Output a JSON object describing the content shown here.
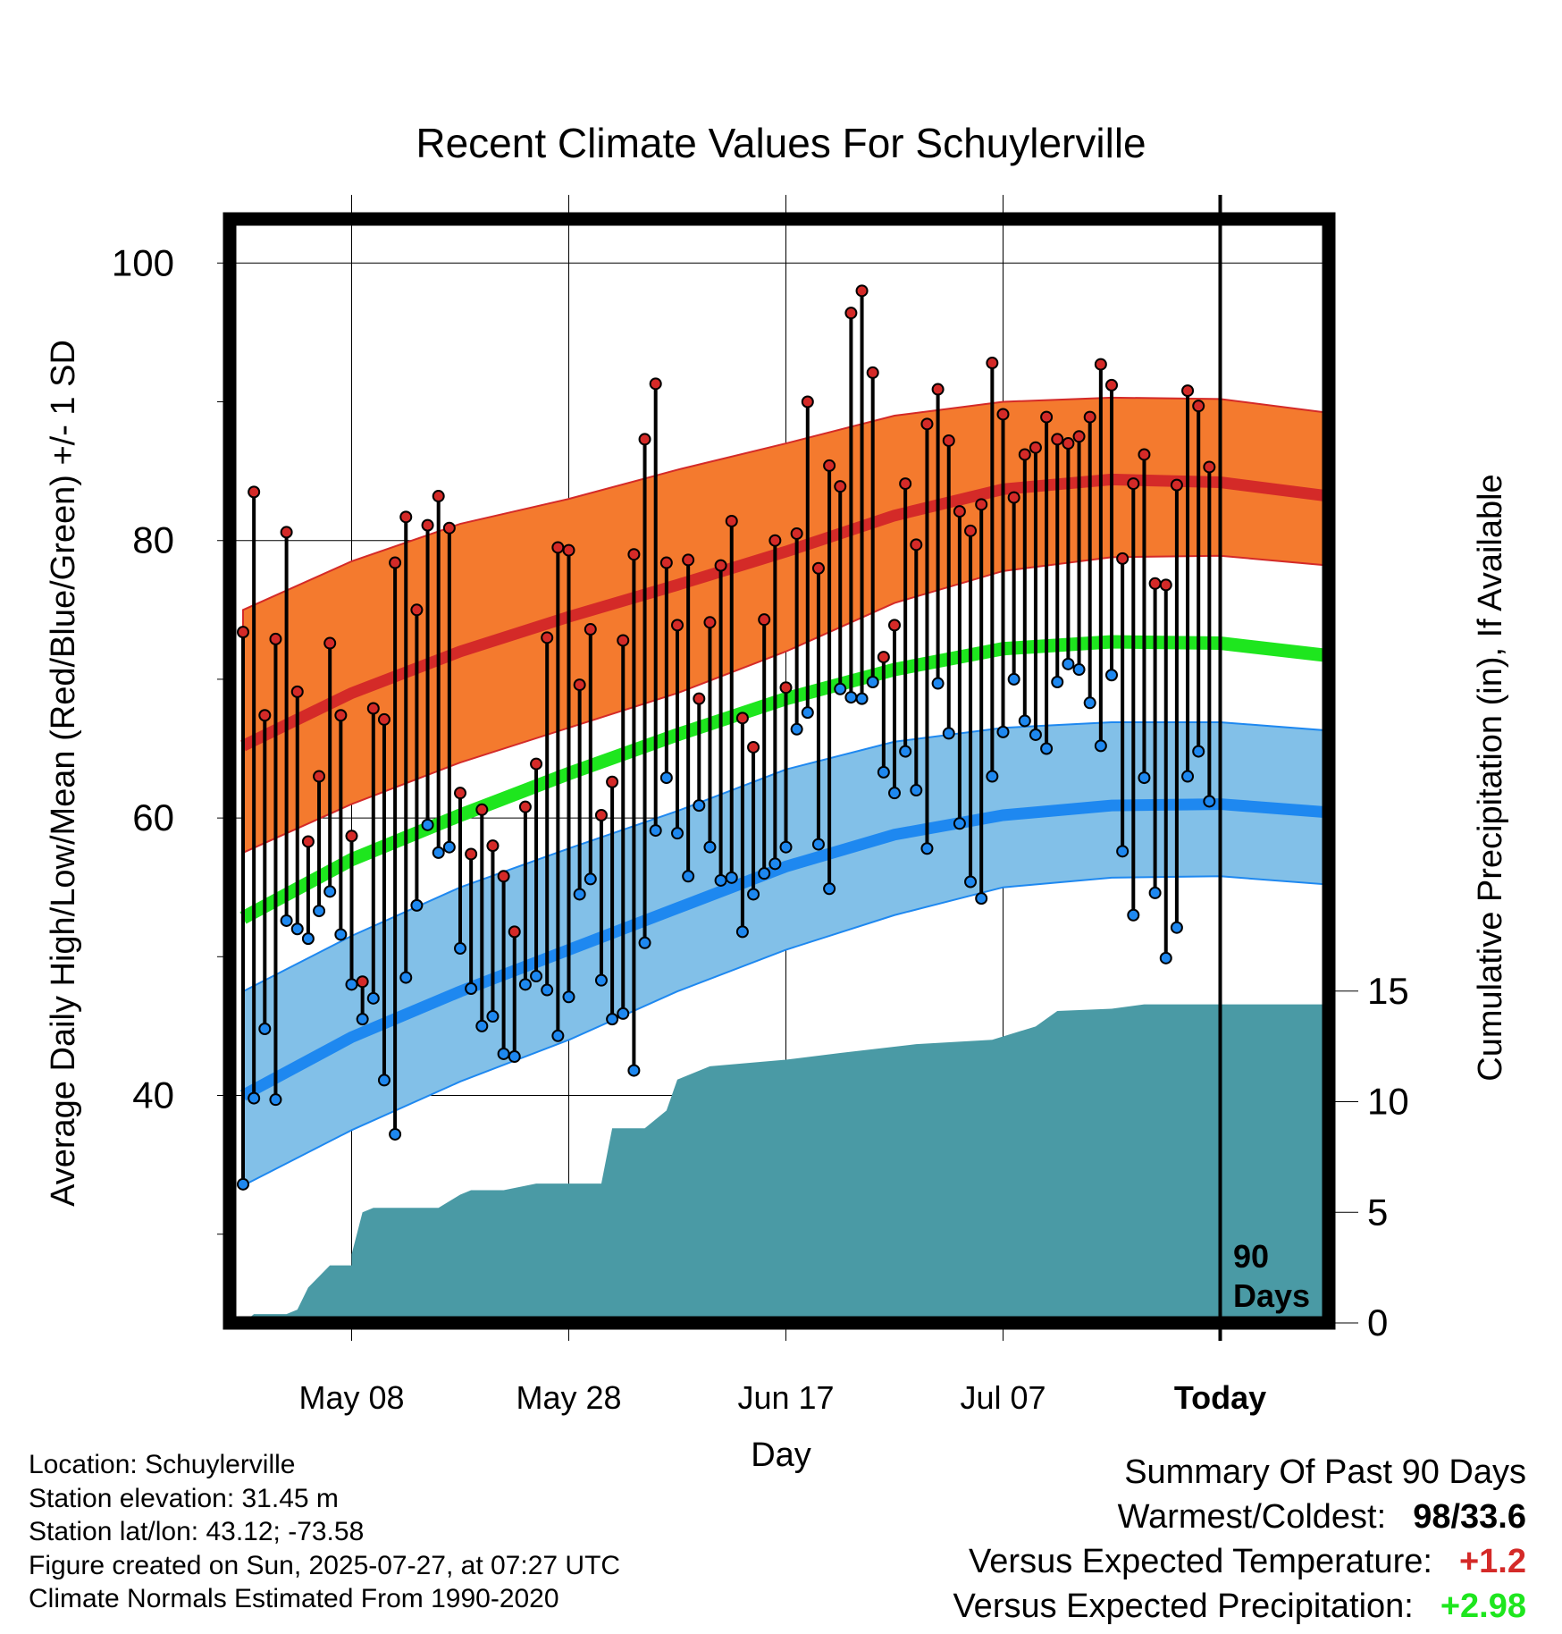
{
  "title": "Recent Climate Values For Schuylerville",
  "ylabel_left": "Average Daily High/Low/Mean (Red/Blue/Green) +/- 1 SD",
  "ylabel_right": "Cumulative Precipitation (in), If Available",
  "xlabel": "Day",
  "days_label": "90 Days",
  "colors": {
    "high_band": "#f47a2e",
    "high_mean": "#d42a28",
    "mean_line": "#1ee61e",
    "low_band": "#82c0e8",
    "low_mean": "#1e88f0",
    "precip": "#4a9aa5",
    "high_point": "#d42a28",
    "low_point": "#1e88f0"
  },
  "info": {
    "location": "Location: Schuylerville",
    "elevation": "Station elevation: 31.45 m",
    "latlon": "Station lat/lon: 43.12; -73.58",
    "created": "Figure created on Sun, 2025-07-27, at 07:27 UTC",
    "normals": "Climate Normals Estimated From 1990-2020"
  },
  "summary": {
    "title": "Summary Of Past 90 Days",
    "warm_cold_label": "Warmest/Coldest:",
    "warm_value": "98",
    "cold_value": "/33.6",
    "temp_label": "Versus Expected Temperature:",
    "temp_value": "+1.2",
    "temp_color": "#d42a28",
    "precip_label": "Versus Expected Precipitation:",
    "precip_value": "+2.98",
    "precip_color": "#1ee61e"
  },
  "chart_data": {
    "type": "line",
    "title": "Recent Climate Values For Schuylerville",
    "xlabel": "Day",
    "x_range": [
      "2025-04-28",
      "2025-08-07"
    ],
    "x_ticks": [
      {
        "date": "2025-05-08",
        "label": "May 08"
      },
      {
        "date": "2025-05-28",
        "label": "May 28"
      },
      {
        "date": "2025-06-17",
        "label": "Jun 17"
      },
      {
        "date": "2025-07-07",
        "label": "Jul 07"
      },
      {
        "date": "2025-07-27",
        "label": "Today"
      }
    ],
    "y_left": {
      "label": "Average Daily High/Low/Mean (Red/Blue/Green) +/- 1 SD",
      "range": [
        24,
        102
      ],
      "ticks": [
        40,
        60,
        80,
        100
      ]
    },
    "y_right": {
      "label": "Cumulative Precipitation (in), If Available",
      "range": [
        0,
        15
      ],
      "ticks": [
        0,
        5,
        10,
        15
      ]
    },
    "today": "2025-07-27",
    "grid": true,
    "normals": {
      "dates": [
        "2025-04-28",
        "2025-05-08",
        "2025-05-18",
        "2025-05-28",
        "2025-06-07",
        "2025-06-17",
        "2025-06-27",
        "2025-07-07",
        "2025-07-17",
        "2025-07-27",
        "2025-08-07"
      ],
      "high_mean": [
        65.2,
        69.0,
        72.0,
        74.5,
        76.8,
        79.2,
        81.8,
        83.7,
        84.4,
        84.2,
        83.2
      ],
      "high_upper": [
        75.0,
        78.5,
        81.2,
        83.0,
        85.1,
        87.0,
        89.0,
        90.0,
        90.3,
        90.2,
        89.2
      ],
      "high_lower": [
        57.5,
        61.0,
        64.0,
        66.5,
        69.0,
        72.0,
        75.5,
        77.8,
        78.8,
        78.9,
        78.2
      ],
      "mean": [
        52.8,
        57.0,
        60.2,
        63.2,
        66.0,
        68.6,
        70.7,
        72.2,
        72.7,
        72.6,
        71.7
      ],
      "low_mean": [
        40.0,
        44.2,
        47.5,
        50.5,
        53.5,
        56.5,
        58.8,
        60.2,
        60.9,
        61.0,
        60.4
      ],
      "low_upper": [
        47.5,
        51.5,
        55.0,
        57.8,
        60.5,
        63.5,
        65.5,
        66.5,
        66.9,
        66.9,
        66.3
      ],
      "low_lower": [
        33.5,
        37.5,
        41.0,
        44.0,
        47.5,
        50.5,
        53.0,
        55.0,
        55.7,
        55.8,
        55.2
      ]
    },
    "daily_temps": [
      {
        "date": "2025-04-28",
        "high": 73.4,
        "low": 33.6
      },
      {
        "date": "2025-04-29",
        "high": 83.5,
        "low": 39.8
      },
      {
        "date": "2025-04-30",
        "high": 67.4,
        "low": 44.8
      },
      {
        "date": "2025-05-01",
        "high": 72.9,
        "low": 39.7
      },
      {
        "date": "2025-05-02",
        "high": 80.6,
        "low": 52.6
      },
      {
        "date": "2025-05-03",
        "high": 69.1,
        "low": 52.0
      },
      {
        "date": "2025-05-04",
        "high": 58.3,
        "low": 51.3
      },
      {
        "date": "2025-05-05",
        "high": 63.0,
        "low": 53.3
      },
      {
        "date": "2025-05-06",
        "high": 72.6,
        "low": 54.7
      },
      {
        "date": "2025-05-07",
        "high": 67.4,
        "low": 51.6
      },
      {
        "date": "2025-05-08",
        "high": 58.7,
        "low": 48.0
      },
      {
        "date": "2025-05-09",
        "high": 48.2,
        "low": 45.5
      },
      {
        "date": "2025-05-10",
        "high": 67.9,
        "low": 47.0
      },
      {
        "date": "2025-05-11",
        "high": 67.1,
        "low": 41.1
      },
      {
        "date": "2025-05-12",
        "high": 78.4,
        "low": 37.2
      },
      {
        "date": "2025-05-13",
        "high": 81.7,
        "low": 48.5
      },
      {
        "date": "2025-05-14",
        "high": 75.0,
        "low": 53.7
      },
      {
        "date": "2025-05-15",
        "high": 81.1,
        "low": 59.5
      },
      {
        "date": "2025-05-16",
        "high": 83.2,
        "low": 57.5
      },
      {
        "date": "2025-05-17",
        "high": 80.9,
        "low": 57.9
      },
      {
        "date": "2025-05-18",
        "high": 61.8,
        "low": 50.6
      },
      {
        "date": "2025-05-19",
        "high": 57.4,
        "low": 47.7
      },
      {
        "date": "2025-05-20",
        "high": 60.6,
        "low": 45.0
      },
      {
        "date": "2025-05-21",
        "high": 58.0,
        "low": 45.7
      },
      {
        "date": "2025-05-22",
        "high": 55.8,
        "low": 43.0
      },
      {
        "date": "2025-05-23",
        "high": 51.8,
        "low": 42.8
      },
      {
        "date": "2025-05-24",
        "high": 60.8,
        "low": 48.0
      },
      {
        "date": "2025-05-25",
        "high": 63.9,
        "low": 48.6
      },
      {
        "date": "2025-05-26",
        "high": 73.0,
        "low": 47.6
      },
      {
        "date": "2025-05-27",
        "high": 79.5,
        "low": 44.3
      },
      {
        "date": "2025-05-28",
        "high": 79.3,
        "low": 47.1
      },
      {
        "date": "2025-05-29",
        "high": 69.6,
        "low": 54.5
      },
      {
        "date": "2025-05-30",
        "high": 73.6,
        "low": 55.6
      },
      {
        "date": "2025-05-31",
        "high": 60.2,
        "low": 48.3
      },
      {
        "date": "2025-06-01",
        "high": 62.6,
        "low": 45.5
      },
      {
        "date": "2025-06-02",
        "high": 72.8,
        "low": 45.9
      },
      {
        "date": "2025-06-03",
        "high": 79.0,
        "low": 41.8
      },
      {
        "date": "2025-06-04",
        "high": 87.3,
        "low": 51.0
      },
      {
        "date": "2025-06-05",
        "high": 91.3,
        "low": 59.1
      },
      {
        "date": "2025-06-06",
        "high": 78.4,
        "low": 62.9
      },
      {
        "date": "2025-06-07",
        "high": 73.9,
        "low": 58.9
      },
      {
        "date": "2025-06-08",
        "high": 78.6,
        "low": 55.8
      },
      {
        "date": "2025-06-09",
        "high": 68.6,
        "low": 60.9
      },
      {
        "date": "2025-06-10",
        "high": 74.1,
        "low": 57.9
      },
      {
        "date": "2025-06-11",
        "high": 78.2,
        "low": 55.5
      },
      {
        "date": "2025-06-12",
        "high": 81.4,
        "low": 55.7
      },
      {
        "date": "2025-06-13",
        "high": 67.2,
        "low": 51.8
      },
      {
        "date": "2025-06-14",
        "high": 65.1,
        "low": 54.5
      },
      {
        "date": "2025-06-15",
        "high": 74.3,
        "low": 56.0
      },
      {
        "date": "2025-06-16",
        "high": 80.0,
        "low": 56.7
      },
      {
        "date": "2025-06-17",
        "high": 69.4,
        "low": 57.9
      },
      {
        "date": "2025-06-18",
        "high": 80.5,
        "low": 66.4
      },
      {
        "date": "2025-06-19",
        "high": 90.0,
        "low": 67.6
      },
      {
        "date": "2025-06-20",
        "high": 78.0,
        "low": 58.1
      },
      {
        "date": "2025-06-21",
        "high": 85.4,
        "low": 54.9
      },
      {
        "date": "2025-06-22",
        "high": 83.9,
        "low": 69.3
      },
      {
        "date": "2025-06-23",
        "high": 96.4,
        "low": 68.7
      },
      {
        "date": "2025-06-24",
        "high": 98.0,
        "low": 68.6
      },
      {
        "date": "2025-06-25",
        "high": 92.1,
        "low": 69.8
      },
      {
        "date": "2025-06-26",
        "high": 71.6,
        "low": 63.3
      },
      {
        "date": "2025-06-27",
        "high": 73.9,
        "low": 61.8
      },
      {
        "date": "2025-06-28",
        "high": 84.1,
        "low": 64.8
      },
      {
        "date": "2025-06-29",
        "high": 79.7,
        "low": 62.0
      },
      {
        "date": "2025-06-30",
        "high": 88.4,
        "low": 57.8
      },
      {
        "date": "2025-07-01",
        "high": 90.9,
        "low": 69.7
      },
      {
        "date": "2025-07-02",
        "high": 87.2,
        "low": 66.1
      },
      {
        "date": "2025-07-03",
        "high": 82.1,
        "low": 59.6
      },
      {
        "date": "2025-07-04",
        "high": 80.7,
        "low": 55.4
      },
      {
        "date": "2025-07-05",
        "high": 82.6,
        "low": 54.2
      },
      {
        "date": "2025-07-06",
        "high": 92.8,
        "low": 63.0
      },
      {
        "date": "2025-07-07",
        "high": 89.1,
        "low": 66.2
      },
      {
        "date": "2025-07-08",
        "high": 83.1,
        "low": 70.0
      },
      {
        "date": "2025-07-09",
        "high": 86.2,
        "low": 67.0
      },
      {
        "date": "2025-07-10",
        "high": 86.7,
        "low": 66.0
      },
      {
        "date": "2025-07-11",
        "high": 88.9,
        "low": 65.0
      },
      {
        "date": "2025-07-12",
        "high": 87.3,
        "low": 69.8
      },
      {
        "date": "2025-07-13",
        "high": 87.0,
        "low": 71.1
      },
      {
        "date": "2025-07-14",
        "high": 87.5,
        "low": 70.7
      },
      {
        "date": "2025-07-15",
        "high": 88.9,
        "low": 68.3
      },
      {
        "date": "2025-07-16",
        "high": 92.7,
        "low": 65.2
      },
      {
        "date": "2025-07-17",
        "high": 91.2,
        "low": 70.3
      },
      {
        "date": "2025-07-18",
        "high": 78.7,
        "low": 57.6
      },
      {
        "date": "2025-07-19",
        "high": 84.1,
        "low": 53.0
      },
      {
        "date": "2025-07-20",
        "high": 86.2,
        "low": 62.9
      },
      {
        "date": "2025-07-21",
        "high": 76.9,
        "low": 54.6
      },
      {
        "date": "2025-07-22",
        "high": 76.8,
        "low": 49.9
      },
      {
        "date": "2025-07-23",
        "high": 84.0,
        "low": 52.1
      },
      {
        "date": "2025-07-24",
        "high": 90.8,
        "low": 63.0
      },
      {
        "date": "2025-07-25",
        "high": 89.7,
        "low": 64.8
      },
      {
        "date": "2025-07-26",
        "high": 85.3,
        "low": 61.2
      }
    ],
    "cumulative_precip": {
      "dates": [
        "2025-04-28",
        "2025-04-29",
        "2025-05-02",
        "2025-05-03",
        "2025-05-04",
        "2025-05-06",
        "2025-05-08",
        "2025-05-08",
        "2025-05-09",
        "2025-05-10",
        "2025-05-16",
        "2025-05-18",
        "2025-05-19",
        "2025-05-22",
        "2025-05-25",
        "2025-05-31",
        "2025-06-01",
        "2025-06-04",
        "2025-06-06",
        "2025-06-07",
        "2025-06-10",
        "2025-06-17",
        "2025-06-22",
        "2025-06-29",
        "2025-07-06",
        "2025-07-10",
        "2025-07-12",
        "2025-07-17",
        "2025-07-20",
        "2025-08-07"
      ],
      "values": [
        0,
        0.4,
        0.4,
        0.6,
        1.6,
        2.6,
        2.6,
        3.1,
        5.0,
        5.2,
        5.2,
        5.8,
        6.0,
        6.0,
        6.3,
        6.3,
        8.8,
        8.8,
        9.6,
        11.0,
        11.6,
        11.9,
        12.2,
        12.6,
        12.8,
        13.4,
        14.1,
        14.2,
        14.4,
        14.4
      ]
    }
  }
}
